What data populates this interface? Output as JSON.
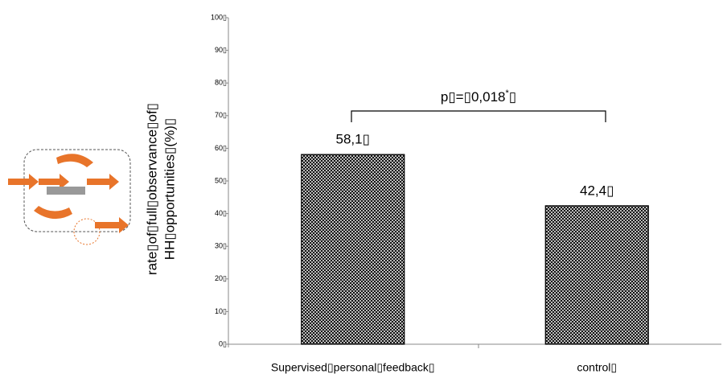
{
  "chart_data": {
    "type": "bar",
    "y_label": [
      "rate▯of▯full▯observance▯of▯",
      "HH▯opportunities▯(%)▯"
    ],
    "categories": [
      "Supervised▯personal▯feedback▯",
      "control▯"
    ],
    "values": [
      58.1,
      42.4
    ],
    "value_labels": [
      "58,1▯",
      "42,4▯"
    ],
    "color": "#000000",
    "ylim": [
      0,
      100
    ],
    "yticks": [
      {
        "value": 0,
        "label": "0▯"
      },
      {
        "value": 10,
        "label": "10▯"
      },
      {
        "value": 20,
        "label": "20▯"
      },
      {
        "value": 30,
        "label": "30▯"
      },
      {
        "value": 40,
        "label": "40▯"
      },
      {
        "value": 50,
        "label": "50▯"
      },
      {
        "value": 60,
        "label": "60▯"
      },
      {
        "value": 70,
        "label": "70▯"
      },
      {
        "value": 80,
        "label": "80▯"
      },
      {
        "value": 90,
        "label": "90▯"
      },
      {
        "value": 100,
        "label": "100▯"
      }
    ],
    "annotation": {
      "text": "p▯=▯0,018",
      "superscript": "*",
      "suffix": "▯"
    }
  }
}
